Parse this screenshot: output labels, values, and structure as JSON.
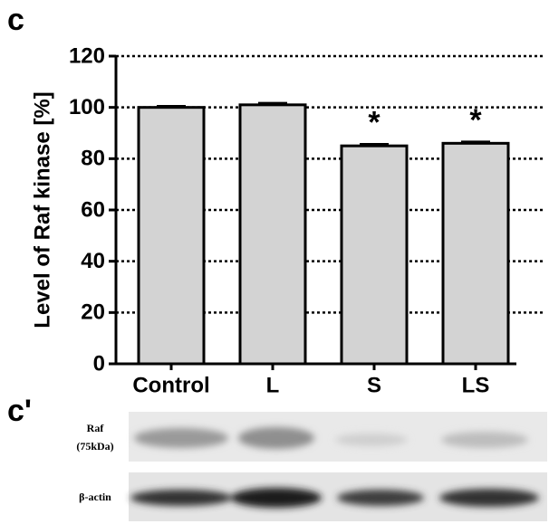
{
  "panel_label": "c",
  "chart_data": {
    "type": "bar",
    "y_label": "Level of Raf kinase [%]",
    "categories": [
      "Control",
      "L",
      "S",
      "LS"
    ],
    "values": [
      100,
      101,
      85,
      86
    ],
    "errors": [
      0.4,
      0.6,
      0.6,
      0.5
    ],
    "significance": [
      null,
      null,
      "*",
      "*"
    ],
    "color": "#d3d3d3",
    "ylim": [
      0,
      120
    ],
    "yticks": [
      0,
      20,
      40,
      60,
      80,
      100,
      120
    ],
    "grid": true
  },
  "blot": {
    "panel_label": "c'",
    "rows": [
      {
        "label": "Raf",
        "sublabel": "(75kDa)"
      },
      {
        "label": "β-actin"
      }
    ]
  }
}
